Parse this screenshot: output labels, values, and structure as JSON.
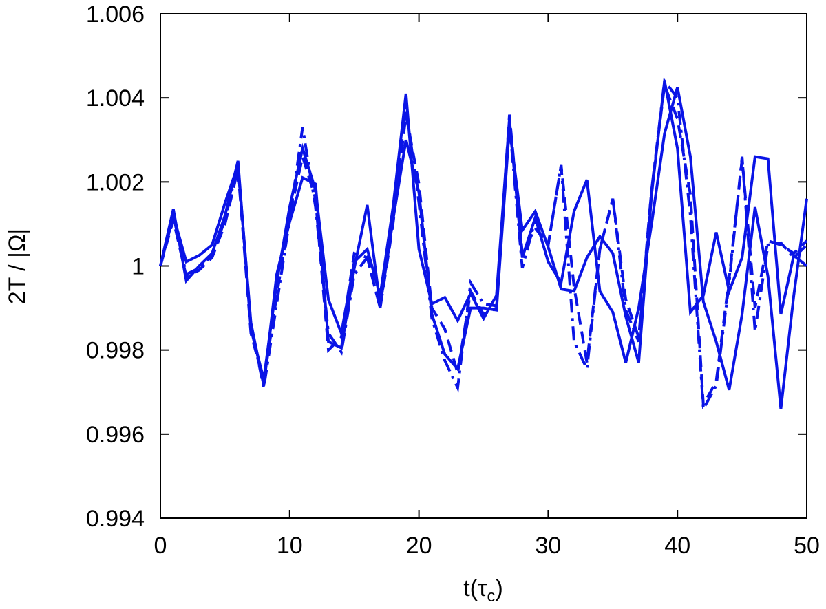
{
  "chart_data": {
    "type": "line",
    "title": "",
    "xlabel": "t(τc)",
    "xlabel_main": "t(τ",
    "xlabel_sub": "c",
    "xlabel_close": ")",
    "ylabel": "2T / |Ω|",
    "xlim": [
      0,
      50
    ],
    "ylim": [
      0.994,
      1.006
    ],
    "xticks": [
      0,
      10,
      20,
      30,
      40,
      50
    ],
    "xtick_labels": [
      "0",
      "10",
      "20",
      "30",
      "40",
      "50"
    ],
    "yticks": [
      0.994,
      0.996,
      0.998,
      1.0,
      1.002,
      1.004,
      1.006
    ],
    "ytick_labels": [
      "0.994",
      "0.996",
      "0.998",
      "1",
      "1.002",
      "1.004",
      "1.006"
    ],
    "grid": false,
    "line_color": "#0a14e6",
    "x": [
      0,
      1,
      2,
      3,
      4,
      5,
      6,
      7,
      8,
      9,
      10,
      11,
      12,
      13,
      14,
      15,
      16,
      17,
      18,
      19,
      20,
      21,
      22,
      23,
      24,
      25,
      26,
      27,
      28,
      29,
      30,
      31,
      32,
      33,
      34,
      35,
      36,
      37,
      38,
      39,
      40,
      41,
      42,
      43,
      44,
      45,
      46,
      47,
      48,
      49,
      50
    ],
    "series": [
      {
        "style": "solid",
        "values": [
          1.0,
          1.00135,
          0.99965,
          1.0,
          1.0003,
          1.0012,
          1.0025,
          0.9985,
          0.9973,
          0.9996,
          1.0014,
          1.0028,
          1.0018,
          0.9992,
          0.9984,
          1.0001,
          1.0004,
          0.9993,
          1.0014,
          1.0041,
          1.0004,
          0.9991,
          0.99925,
          0.9987,
          0.99935,
          0.99875,
          0.9993,
          1.0035,
          1.0002,
          1.00115,
          1.0001,
          0.9996,
          1.0013,
          1.00205,
          0.9994,
          0.9989,
          0.9977,
          0.999,
          1.001,
          1.00315,
          1.00425,
          1.0026,
          0.99915,
          0.9982,
          0.99705,
          0.99885,
          1.0014,
          0.99975,
          0.9966,
          0.9993,
          1.0016
        ]
      },
      {
        "style": "solid",
        "values": [
          1.0,
          1.0012,
          1.0001,
          1.00025,
          1.0005,
          1.0015,
          1.0024,
          0.99865,
          0.99715,
          0.9998,
          1.00105,
          1.0021,
          1.00195,
          0.9982,
          0.99805,
          0.99995,
          1.00145,
          0.99905,
          1.0011,
          1.003,
          1.00175,
          0.99885,
          0.9979,
          0.99755,
          0.999,
          0.999,
          0.99895,
          1.0033,
          1.00085,
          1.0013,
          1.00045,
          0.99945,
          0.9994,
          1.0002,
          1.0007,
          1.0003,
          0.9988,
          0.9977,
          1.0017,
          1.0044,
          1.0028,
          0.9989,
          0.9993,
          1.0008,
          0.9994,
          1.0002,
          1.0026,
          1.00255,
          0.99885,
          1.00025,
          1.0
        ]
      },
      {
        "style": "dashed",
        "values": [
          1.0,
          1.0011,
          0.99975,
          0.9999,
          1.0002,
          1.001,
          1.0023,
          0.9984,
          0.99725,
          0.9993,
          1.0012,
          1.0026,
          1.0016,
          0.998,
          0.9983,
          1.0003,
          1.0002,
          0.999,
          1.001,
          1.0036,
          1.00195,
          0.999,
          0.9985,
          0.99745,
          0.9994,
          0.99885,
          0.999,
          1.0036,
          1.0003,
          1.0009,
          1.0005,
          1.0024,
          0.9995,
          0.9977,
          1.0004,
          1.0016,
          0.9992,
          0.9983,
          1.0018,
          1.0043,
          1.0035,
          1.0017,
          0.9967,
          0.99725,
          0.9997,
          1.00255,
          0.999,
          1.0006,
          1.0005,
          1.0003,
          1.0006
        ]
      },
      {
        "style": "dashdot",
        "values": [
          1.0,
          1.0012,
          0.9998,
          0.99995,
          1.00025,
          1.0011,
          1.0024,
          0.9986,
          0.9971,
          0.9991,
          1.0011,
          1.0033,
          1.0014,
          0.9984,
          0.99795,
          0.9998,
          1.0002,
          0.999,
          1.0012,
          1.0038,
          1.0015,
          0.99875,
          0.99775,
          0.9971,
          0.9996,
          0.9991,
          0.99905,
          1.0034,
          0.99995,
          1.0011,
          1.0005,
          1.0024,
          0.9982,
          0.99755,
          1.0004,
          1.0016,
          0.99895,
          0.9982,
          1.0018,
          1.0044,
          1.004,
          1.0012,
          0.9966,
          0.99715,
          0.9996,
          1.0026,
          0.99845,
          1.0005,
          1.00055,
          1.0002,
          1.0005
        ]
      }
    ]
  }
}
